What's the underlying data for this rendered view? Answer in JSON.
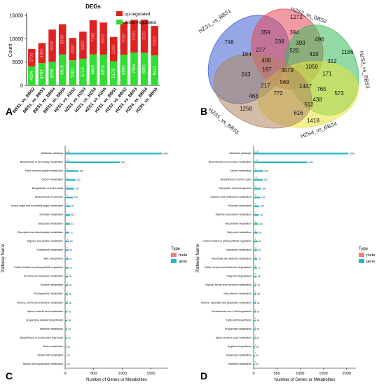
{
  "panel_labels": [
    "A",
    "B",
    "C",
    "D"
  ],
  "chart_data": [
    {
      "panel": "A",
      "type": "bar",
      "stacked": true,
      "title": "DEGs",
      "xlabel": "",
      "ylabel": "Count",
      "ylim": [
        0,
        15000
      ],
      "yticks": [
        0,
        5000,
        10000,
        15000
      ],
      "legend_position": "top-right",
      "categories": [
        "BBS1_vs_BBS2",
        "BBS1_vs_BBS3",
        "BBS1_vs_BBS4",
        "BBS1_vs_BBS5",
        "HZS1_vs_HZS2",
        "HZS1_vs_HZS3",
        "HZS1_vs_HZS4",
        "HZS1_vs_HZS5",
        "HZS1_vs_BBS1",
        "HZS2_vs_BBS2",
        "HZS3_vs_BBS3",
        "HZS4_vs_BBS4",
        "HZS5_vs_BBS5"
      ],
      "series": [
        {
          "name": "down-regulated",
          "color": "#33dd33",
          "values": [
            4094,
            4762,
            5059,
            6615,
            5367,
            5713,
            6656,
            6579,
            5173,
            6595,
            7054,
            6991,
            6421
          ]
        },
        {
          "name": "up-regulated",
          "color": "#dd2222",
          "values": [
            3700,
            4300,
            6900,
            6500,
            4800,
            5800,
            7300,
            6900,
            5200,
            7000,
            7000,
            7100,
            6300
          ]
        }
      ]
    },
    {
      "panel": "B",
      "type": "venn",
      "sets": [
        {
          "name": "HZS1_vs_BBS1",
          "color": "#3f5fd0"
        },
        {
          "name": "HZS2_vs_BBS2",
          "color": "#e8485a"
        },
        {
          "name": "HZS3_vs_BBS3",
          "color": "#3dbb5d"
        },
        {
          "name": "HZS4_vs_BBS4",
          "color": "#e8e33a"
        },
        {
          "name": "HZS5_vs_BBS5",
          "color": "#b08560"
        }
      ],
      "region_counts": [
        "746",
        "1272",
        "1186",
        "1418",
        "1258",
        "359",
        "394",
        "496",
        "164",
        "277",
        "238",
        "393",
        "406",
        "520",
        "410",
        "312",
        "243",
        "197",
        "171",
        "4579",
        "1050",
        "217",
        "569",
        "1447",
        "765",
        "573",
        "463",
        "772",
        "616",
        "438",
        "512"
      ]
    },
    {
      "panel": "C",
      "type": "bar",
      "orientation": "horizontal",
      "xlabel": "Number of Genes or Metabolites",
      "ylabel": "Pathway Name",
      "xlim": [
        0,
        1800
      ],
      "xticks": [
        0,
        500,
        1000,
        1500
      ],
      "legend_title": "Type",
      "legend_position": "right",
      "categories": [
        "Metabolic pathways",
        "Biosynthesis of secondary metabolites",
        "Plant hormone signal transduction",
        "Carbon metabolism",
        "Biosynthesis of amino acids",
        "Biosynthesis of cofactors",
        "Amino sugar and nucleotide sugar metabolism",
        "Pyruvate metabolism",
        "Galactose metabolism",
        "Glyoxylate and dicarboxylate metabolism",
        "Arginine and proline metabolism",
        "Glutathione metabolism",
        "ABC transporters",
        "Carbon fixation in photosynthetic organisms",
        "Fructose and mannose metabolism",
        "Tyrosine metabolism",
        "Phenylalanine metabolism",
        "Glycine, serine and threonine metabolism",
        "alpha-Linolenic acid metabolism",
        "Isoquinoline alkaloid biosynthesis",
        "Histidine metabolism",
        "Biosynthesis of unsaturated fatty acids",
        "Biotin metabolism",
        "Vitamin B6 metabolism",
        "Taurine and hypotaurine metabolism"
      ],
      "series": [
        {
          "name": "meta",
          "color": "#e7837a",
          "values": [
            25,
            12,
            6,
            4,
            8,
            3,
            3,
            2,
            2,
            2,
            4,
            3,
            5,
            2,
            3,
            3,
            3,
            3,
            3,
            3,
            2,
            2,
            1,
            2,
            1
          ]
        },
        {
          "name": "gene",
          "color": "#2bb7c9",
          "values": [
            1689,
            960,
            236,
            182,
            160,
            135,
            92,
            88,
            84,
            72,
            68,
            62,
            57,
            55,
            50,
            48,
            46,
            45,
            40,
            38,
            35,
            32,
            25,
            20,
            18
          ]
        }
      ]
    },
    {
      "panel": "D",
      "type": "bar",
      "orientation": "horizontal",
      "xlabel": "Number of Genes or Metabolites",
      "ylabel": "Pathway Name",
      "xlim": [
        0,
        2200
      ],
      "xticks": [
        0,
        500,
        1000,
        1500,
        2000
      ],
      "legend_title": "Type",
      "legend_position": "right",
      "categories": [
        "Metabolic pathways",
        "Biosynthesis of secondary metabolites",
        "Carbon metabolism",
        "Biosynthesis of amino acids",
        "Glycolysis / Gluconeogenesis",
        "Cysteine and methionine metabolism",
        "Pyruvate metabolism",
        "Arginine and proline metabolism",
        "Glycerolipid metabolism",
        "Fatty acid metabolism",
        "Carbon fixation in photosynthetic organisms",
        "Tryptophan metabolism",
        "Ascorbate and aldarate metabolism",
        "Valine, leucine and isoleucine degradation",
        "Fatty acid degradation",
        "Glycine, serine and threonine metabolism",
        "beta-Alanine metabolism",
        "Alanine, aspartate and glutamate metabolism",
        "Pantothenate and CoA biosynthesis",
        "Fatty acid biosynthesis",
        "Propanoate metabolism",
        "alpha-Linolenic acid metabolism",
        "Arginine biosynthesis",
        "Butanoate metabolism",
        "Histidine metabolism"
      ],
      "series": [
        {
          "name": "meta",
          "color": "#e7837a",
          "values": [
            35,
            14,
            4,
            10,
            3,
            5,
            2,
            4,
            3,
            2,
            2,
            3,
            2,
            2,
            2,
            3,
            2,
            3,
            2,
            2,
            2,
            3,
            2,
            2,
            2
          ]
        },
        {
          "name": "gene",
          "color": "#2bb7c9",
          "values": [
            2036,
            1157,
            208,
            200,
            160,
            140,
            122,
            112,
            100,
            95,
            90,
            80,
            75,
            72,
            68,
            62,
            58,
            52,
            50,
            48,
            45,
            40,
            35,
            30,
            28
          ]
        }
      ]
    }
  ]
}
